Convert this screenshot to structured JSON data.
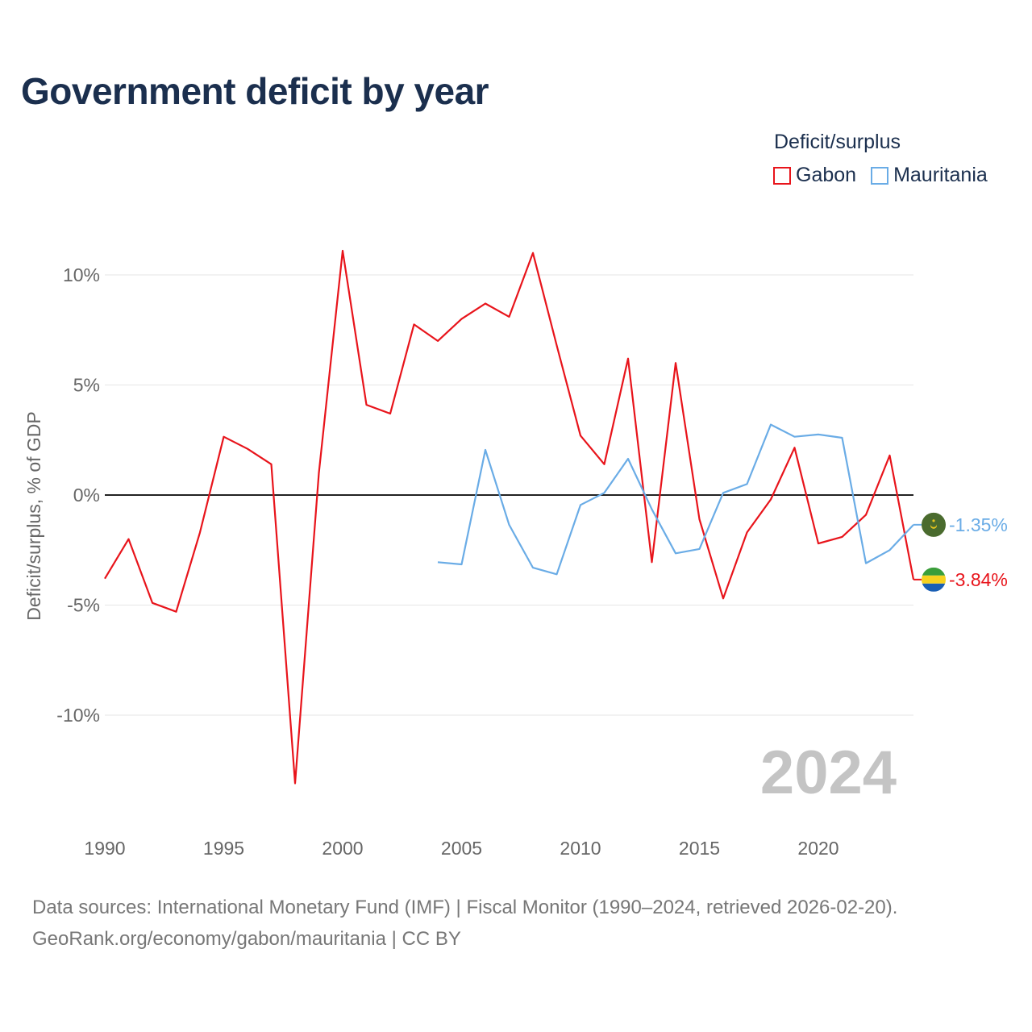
{
  "title": "Government deficit by year",
  "legend": {
    "title": "Deficit/surplus",
    "items": [
      {
        "name": "Gabon",
        "color": "#e8141b"
      },
      {
        "name": "Mauritania",
        "color": "#6aace6"
      }
    ]
  },
  "watermark_year": "2024",
  "sources": {
    "line1": "Data sources: International Monetary Fund (IMF) | Fiscal Monitor (1990–2024, retrieved 2026-02-20).",
    "line2": "GeoRank.org/economy/gabon/mauritania | CC BY"
  },
  "chart_data": {
    "type": "line",
    "title": "Government deficit by year",
    "xlabel": "",
    "ylabel": "Deficit/surplus, % of GDP",
    "xlim": [
      1990,
      2024
    ],
    "ylim": [
      -13.5,
      11.5
    ],
    "x_ticks": [
      1990,
      1995,
      2000,
      2005,
      2010,
      2015,
      2020
    ],
    "y_ticks": [
      {
        "value": 10,
        "label": "10%"
      },
      {
        "value": 5,
        "label": "5%"
      },
      {
        "value": 0,
        "label": "0%"
      },
      {
        "value": -5,
        "label": "-5%"
      },
      {
        "value": -10,
        "label": "-10%"
      }
    ],
    "series": [
      {
        "name": "Gabon",
        "color": "#e8141b",
        "end_label": "-3.84%",
        "icon": "gabon-flag-icon",
        "x": [
          1990,
          1991,
          1992,
          1993,
          1994,
          1995,
          1996,
          1997,
          1998,
          1999,
          2000,
          2001,
          2002,
          2003,
          2004,
          2005,
          2006,
          2007,
          2008,
          2009,
          2010,
          2011,
          2012,
          2013,
          2014,
          2015,
          2016,
          2017,
          2018,
          2019,
          2020,
          2021,
          2022,
          2023,
          2024
        ],
        "values": [
          -3.8,
          -2.0,
          -4.9,
          -5.3,
          -1.7,
          2.65,
          2.1,
          1.4,
          -13.1,
          1.0,
          11.1,
          4.1,
          3.7,
          7.75,
          7.0,
          8.0,
          8.7,
          8.1,
          11.0,
          6.8,
          2.7,
          1.4,
          6.2,
          -3.05,
          6.0,
          -1.1,
          -4.7,
          -1.7,
          -0.2,
          2.15,
          -2.2,
          -1.9,
          -0.9,
          1.8,
          -3.84
        ]
      },
      {
        "name": "Mauritania",
        "color": "#6aace6",
        "end_label": "-1.35%",
        "icon": "mauritania-flag-icon",
        "x": [
          2004,
          2005,
          2006,
          2007,
          2008,
          2009,
          2010,
          2011,
          2012,
          2013,
          2014,
          2015,
          2016,
          2017,
          2018,
          2019,
          2020,
          2021,
          2022,
          2023,
          2024
        ],
        "values": [
          -3.05,
          -3.15,
          2.05,
          -1.35,
          -3.3,
          -3.6,
          -0.45,
          0.1,
          1.65,
          -0.65,
          -2.65,
          -2.45,
          0.1,
          0.5,
          3.2,
          2.65,
          2.75,
          2.6,
          -3.1,
          -2.5,
          -1.35
        ]
      }
    ]
  }
}
